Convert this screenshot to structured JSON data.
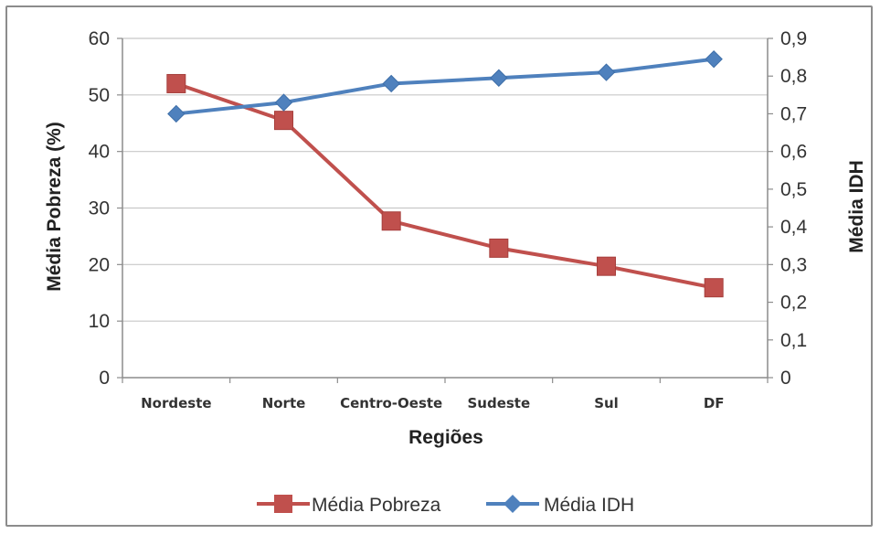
{
  "chart_data": {
    "type": "line",
    "categories": [
      "Nordeste",
      "Norte",
      "Centro-Oeste",
      "Sudeste",
      "Sul",
      "DF"
    ],
    "xlabel": "Regiões",
    "ylabel": "Média Pobreza (%)",
    "y2label": "Média IDH",
    "ylim": [
      0,
      60
    ],
    "y2lim": [
      0,
      0.9
    ],
    "yticks": [
      "0",
      "10",
      "20",
      "30",
      "40",
      "50",
      "60"
    ],
    "y2ticks": [
      "0",
      "0,1",
      "0,2",
      "0,3",
      "0,4",
      "0,5",
      "0,6",
      "0,7",
      "0,8",
      "0,9"
    ],
    "grid": true,
    "legend_position": "bottom",
    "series": [
      {
        "name": "Média Pobreza",
        "axis": "left",
        "color": "#c0504d",
        "marker": "square",
        "values": [
          52,
          45.5,
          27.7,
          22.9,
          19.7,
          15.9
        ]
      },
      {
        "name": "Média IDH",
        "axis": "right",
        "color": "#4f81bd",
        "marker": "diamond",
        "values": [
          0.7,
          0.73,
          0.78,
          0.795,
          0.81,
          0.845
        ]
      }
    ]
  }
}
